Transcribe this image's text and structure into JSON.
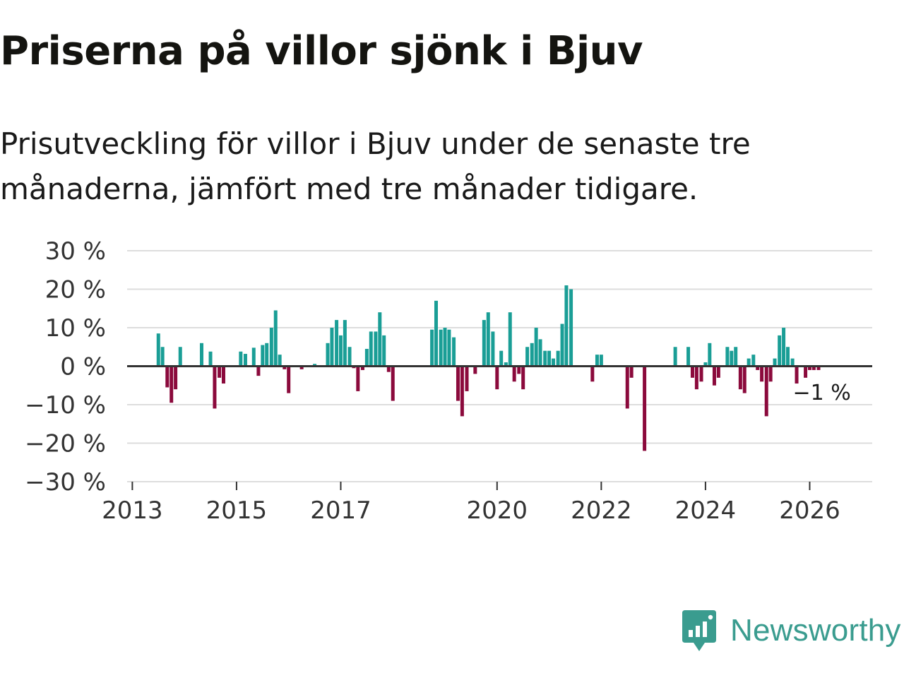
{
  "title": "Priserna på villor sjönk i Bjuv",
  "subtitle": "Prisutveckling för villor i Bjuv under de senaste tre månaderna, jämfört med tre månader tidigare.",
  "logo": {
    "text": "Newsworthy",
    "icon": "newsworthy-chart-icon"
  },
  "colors": {
    "positive": "#1a9e96",
    "negative": "#8b0a3c",
    "axis": "#333333",
    "grid": "#dddddd",
    "brand": "#3a9c8f"
  },
  "chart_data": {
    "type": "bar",
    "title": "Priserna på villor sjönk i Bjuv",
    "xlabel": "",
    "ylabel": "",
    "ylim": [
      -30,
      30
    ],
    "yticks": [
      30,
      20,
      10,
      0,
      -10,
      -20,
      -30
    ],
    "ytick_labels": [
      "30 %",
      "20 %",
      "10 %",
      "0 %",
      "−10 %",
      "−20 %",
      "−30 %"
    ],
    "xticks": [
      2013,
      2015,
      2017,
      2020,
      2022,
      2024,
      2026
    ],
    "xtick_labels": [
      "2013",
      "2015",
      "2017",
      "2020",
      "2022",
      "2024",
      "2026"
    ],
    "xlim": [
      2012.9,
      2027.2
    ],
    "annotation": {
      "text": "−1 %",
      "x": 2026.0,
      "y": -1
    },
    "bars": [
      {
        "x": 2013.5,
        "y": 8.5
      },
      {
        "x": 2013.58,
        "y": 5.0
      },
      {
        "x": 2013.67,
        "y": -5.5
      },
      {
        "x": 2013.75,
        "y": -9.5
      },
      {
        "x": 2013.83,
        "y": -6.0
      },
      {
        "x": 2013.92,
        "y": 5.0
      },
      {
        "x": 2014.33,
        "y": 6.0
      },
      {
        "x": 2014.5,
        "y": 3.8
      },
      {
        "x": 2014.58,
        "y": -11.0
      },
      {
        "x": 2014.67,
        "y": -3.0
      },
      {
        "x": 2014.75,
        "y": -4.5
      },
      {
        "x": 2015.08,
        "y": 3.8
      },
      {
        "x": 2015.17,
        "y": 3.2
      },
      {
        "x": 2015.33,
        "y": 4.8
      },
      {
        "x": 2015.42,
        "y": -2.5
      },
      {
        "x": 2015.5,
        "y": 5.5
      },
      {
        "x": 2015.58,
        "y": 6.0
      },
      {
        "x": 2015.67,
        "y": 10.0
      },
      {
        "x": 2015.75,
        "y": 14.5
      },
      {
        "x": 2015.83,
        "y": 3.0
      },
      {
        "x": 2015.92,
        "y": -0.8
      },
      {
        "x": 2016.0,
        "y": -7.0
      },
      {
        "x": 2016.25,
        "y": -0.8
      },
      {
        "x": 2016.5,
        "y": 0.6
      },
      {
        "x": 2016.75,
        "y": 6.0
      },
      {
        "x": 2016.83,
        "y": 10.0
      },
      {
        "x": 2016.92,
        "y": 12.0
      },
      {
        "x": 2017.0,
        "y": 8.0
      },
      {
        "x": 2017.08,
        "y": 12.0
      },
      {
        "x": 2017.17,
        "y": 5.0
      },
      {
        "x": 2017.25,
        "y": -0.5
      },
      {
        "x": 2017.33,
        "y": -6.5
      },
      {
        "x": 2017.42,
        "y": -1.0
      },
      {
        "x": 2017.5,
        "y": 4.5
      },
      {
        "x": 2017.58,
        "y": 9.0
      },
      {
        "x": 2017.67,
        "y": 9.0
      },
      {
        "x": 2017.75,
        "y": 14.0
      },
      {
        "x": 2017.83,
        "y": 8.0
      },
      {
        "x": 2017.92,
        "y": -1.5
      },
      {
        "x": 2018.0,
        "y": -9.0
      },
      {
        "x": 2018.75,
        "y": 9.5
      },
      {
        "x": 2018.83,
        "y": 17.0
      },
      {
        "x": 2018.92,
        "y": 9.5
      },
      {
        "x": 2019.0,
        "y": 10.0
      },
      {
        "x": 2019.08,
        "y": 9.5
      },
      {
        "x": 2019.17,
        "y": 7.5
      },
      {
        "x": 2019.25,
        "y": -9.0
      },
      {
        "x": 2019.33,
        "y": -13.0
      },
      {
        "x": 2019.42,
        "y": -6.5
      },
      {
        "x": 2019.58,
        "y": -2.0
      },
      {
        "x": 2019.75,
        "y": 12.0
      },
      {
        "x": 2019.83,
        "y": 14.0
      },
      {
        "x": 2019.92,
        "y": 9.0
      },
      {
        "x": 2020.0,
        "y": -6.0
      },
      {
        "x": 2020.08,
        "y": 4.0
      },
      {
        "x": 2020.17,
        "y": 1.0
      },
      {
        "x": 2020.25,
        "y": 14.0
      },
      {
        "x": 2020.33,
        "y": -4.0
      },
      {
        "x": 2020.42,
        "y": -2.0
      },
      {
        "x": 2020.5,
        "y": -6.0
      },
      {
        "x": 2020.58,
        "y": 5.0
      },
      {
        "x": 2020.67,
        "y": 6.0
      },
      {
        "x": 2020.75,
        "y": 10.0
      },
      {
        "x": 2020.83,
        "y": 7.0
      },
      {
        "x": 2020.92,
        "y": 4.0
      },
      {
        "x": 2021.0,
        "y": 4.0
      },
      {
        "x": 2021.08,
        "y": 2.0
      },
      {
        "x": 2021.17,
        "y": 4.0
      },
      {
        "x": 2021.25,
        "y": 11.0
      },
      {
        "x": 2021.33,
        "y": 21.0
      },
      {
        "x": 2021.42,
        "y": 20.0
      },
      {
        "x": 2021.83,
        "y": -4.0
      },
      {
        "x": 2021.92,
        "y": 3.0
      },
      {
        "x": 2022.0,
        "y": 3.0
      },
      {
        "x": 2022.5,
        "y": -11.0
      },
      {
        "x": 2022.58,
        "y": -3.0
      },
      {
        "x": 2022.83,
        "y": -22.0
      },
      {
        "x": 2023.42,
        "y": 5.0
      },
      {
        "x": 2023.67,
        "y": 5.0
      },
      {
        "x": 2023.75,
        "y": -3.0
      },
      {
        "x": 2023.83,
        "y": -6.0
      },
      {
        "x": 2023.92,
        "y": -4.0
      },
      {
        "x": 2024.0,
        "y": 1.0
      },
      {
        "x": 2024.08,
        "y": 6.0
      },
      {
        "x": 2024.17,
        "y": -5.0
      },
      {
        "x": 2024.25,
        "y": -3.0
      },
      {
        "x": 2024.42,
        "y": 5.0
      },
      {
        "x": 2024.5,
        "y": 4.0
      },
      {
        "x": 2024.58,
        "y": 5.0
      },
      {
        "x": 2024.67,
        "y": -6.0
      },
      {
        "x": 2024.75,
        "y": -7.0
      },
      {
        "x": 2024.83,
        "y": 2.0
      },
      {
        "x": 2024.92,
        "y": 3.0
      },
      {
        "x": 2025.0,
        "y": -1.0
      },
      {
        "x": 2025.08,
        "y": -4.0
      },
      {
        "x": 2025.17,
        "y": -13.0
      },
      {
        "x": 2025.25,
        "y": -4.0
      },
      {
        "x": 2025.33,
        "y": 2.0
      },
      {
        "x": 2025.42,
        "y": 8.0
      },
      {
        "x": 2025.5,
        "y": 10.0
      },
      {
        "x": 2025.58,
        "y": 5.0
      },
      {
        "x": 2025.67,
        "y": 2.0
      },
      {
        "x": 2025.75,
        "y": -4.5
      },
      {
        "x": 2025.92,
        "y": -3.0
      },
      {
        "x": 2026.0,
        "y": -1.0
      },
      {
        "x": 2026.08,
        "y": -1.0
      },
      {
        "x": 2026.17,
        "y": -1.0
      }
    ]
  }
}
